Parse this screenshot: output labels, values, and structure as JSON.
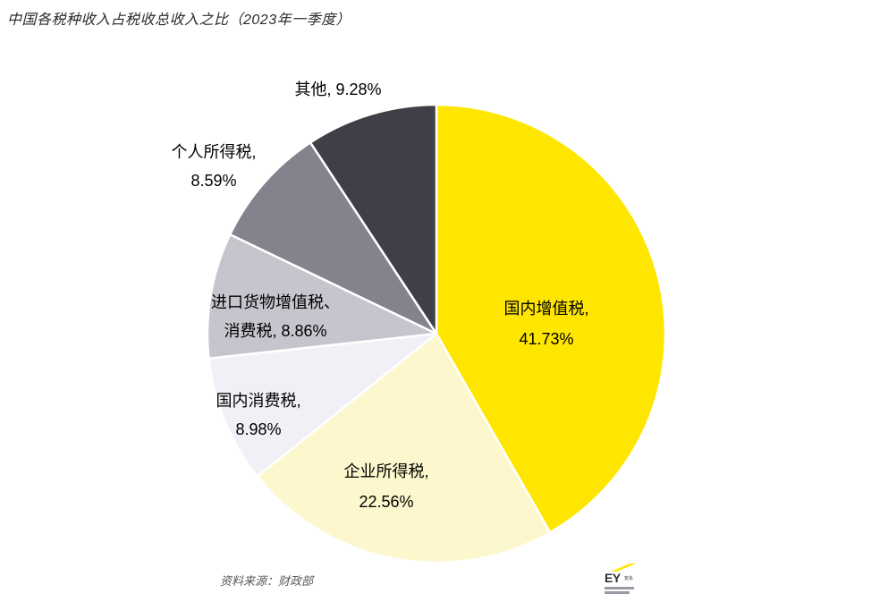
{
  "page": {
    "title": "中国各税种收入占税收总收入之比（2023年一季度）"
  },
  "chart_data": {
    "type": "pie",
    "title": "中国各税种收入占税收总收入之比（2023年一季度）",
    "unit": "%",
    "direction": "clockwise",
    "start_angle_deg_from_top": 0,
    "series": [
      {
        "label": "国内增值税",
        "value": 41.73,
        "color": "#FFE600"
      },
      {
        "label": "企业所得税",
        "value": 22.56,
        "color": "#FCF7CC"
      },
      {
        "label": "国内消费税",
        "value": 8.98,
        "color": "#F0F0F6"
      },
      {
        "label": "进口货物增值税、消费税",
        "value": 8.86,
        "color": "#C5C5CD"
      },
      {
        "label": "个人所得税",
        "value": 8.59,
        "color": "#83838E"
      },
      {
        "label": "其他",
        "value": 9.28,
        "color": "#3F3F47"
      }
    ],
    "separator_color": "#FFFFFF",
    "callouts": {
      "qita": {
        "line1": "其他, 9.28%"
      },
      "geren": {
        "line1": "个人所得税,",
        "line2": "8.59%"
      },
      "jinkou": {
        "line1": "进口货物增值税、",
        "line2": "消费税, 8.86%"
      },
      "guonei_xiaofei": {
        "line1": "国内消费税,",
        "line2": "8.98%"
      },
      "qiye": {
        "line1": "企业所得税,",
        "line2": "22.56%"
      },
      "guonei_zengzhi": {
        "line1": "国内增值税,",
        "line2": "41.73%"
      }
    }
  },
  "footer": {
    "source": "资料来源：财政部"
  },
  "logo": {
    "text": "EY",
    "cn": "安永",
    "brand_yellow": "#FFE600",
    "brand_dark": "#2E2E38"
  }
}
